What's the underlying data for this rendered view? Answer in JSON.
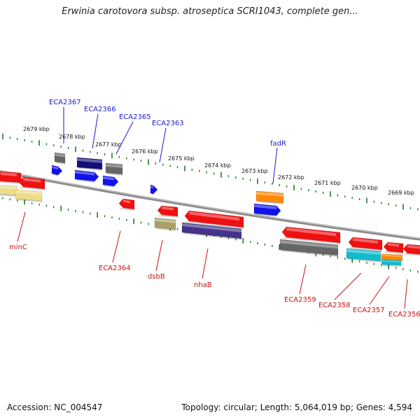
{
  "title": "Erwinia carotovora subsp. atroseptica SCRI1043, complete gen...",
  "footer": {
    "accession": "Accession: NC_004547",
    "summary": "Topology: circular; Length: 5,064,019 bp; Genes: 4,594"
  },
  "ticks": [
    "2679 kbp",
    "2678 kbp",
    "2677 kbp",
    "2676 kbp",
    "2675 kbp",
    "2674 kbp",
    "2673 kbp",
    "2672 kbp",
    "2671 kbp",
    "2670 kbp",
    "2669 kbp"
  ],
  "labels_top": [
    "ECA2367",
    "ECA2366",
    "ECA2365",
    "ECA2363",
    "fadR"
  ],
  "labels_bottom": [
    "minC",
    "ECA2364",
    "dsbB",
    "nhaB",
    "ECA2359",
    "ECA2358",
    "ECA2357",
    "ECA2356"
  ],
  "colors": {
    "red": "#ee1111",
    "blue": "#1111ee",
    "navy": "#111177",
    "gray": "#666666",
    "orange": "#ff8800",
    "cyan": "#11bbcc",
    "yellow": "#eedd88",
    "olive": "#aaa066",
    "purple": "#443388",
    "tick_green": "#2a7a2a",
    "label_top": "#1a1acc",
    "label_bottom": "#cc1111"
  }
}
